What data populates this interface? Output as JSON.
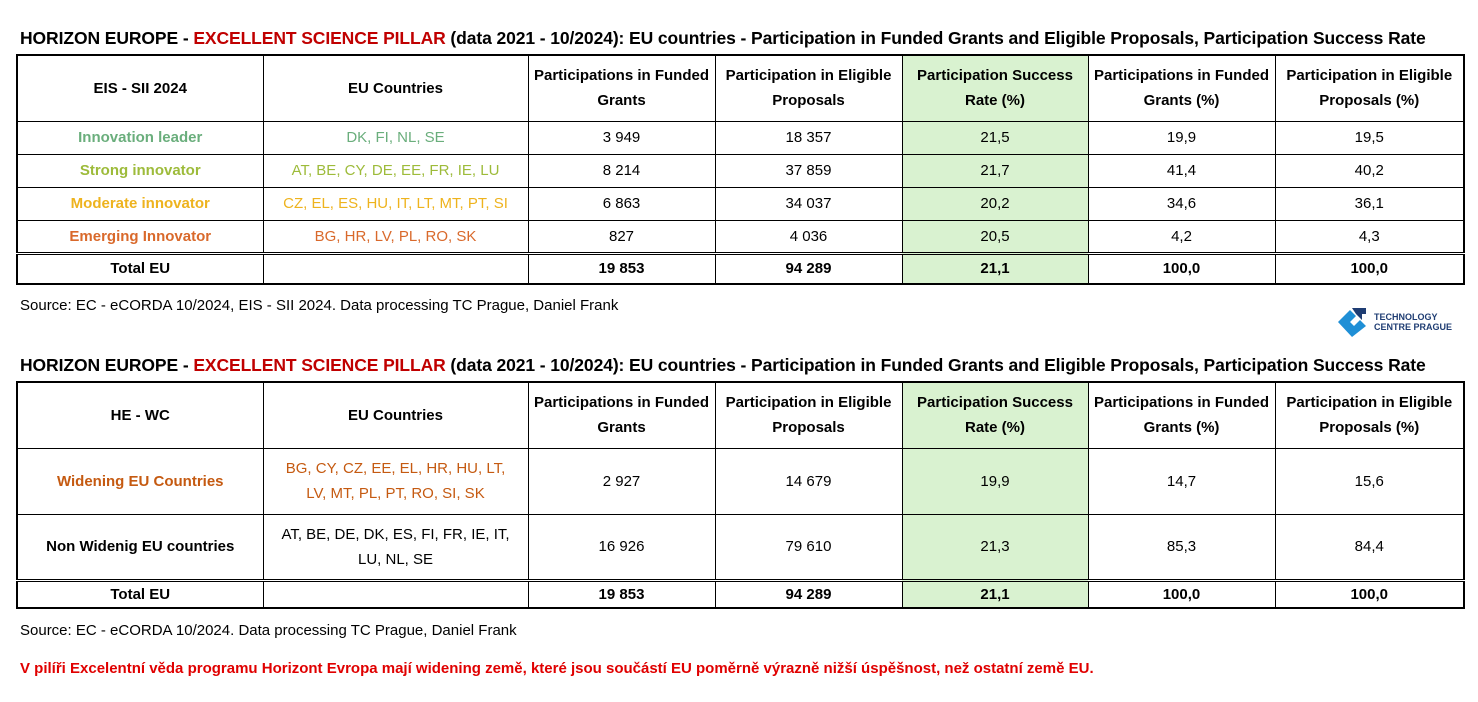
{
  "table1": {
    "title": {
      "a": "HORIZON EUROPE - ",
      "b": "EXCELLENT SCIENCE PILLAR",
      "c": " (data 2021 - 10/2024):  EU countries - Participation in Funded Grants and Eligible Proposals, Participation Success Rate"
    },
    "headers": [
      "EIS - SII 2024",
      "EU Countries",
      "Participations in Funded Grants",
      "Participation in Eligible Proposals",
      "Participation Success Rate (%)",
      "Participations in Funded Grants (%)",
      "Participation in Eligible Proposals (%)"
    ],
    "rows": [
      {
        "group": "Innovation leader",
        "countries": "DK, FI, NL, SE",
        "funded": "3 949",
        "eligible": "18 357",
        "rate": "21,5",
        "funded_pct": "19,9",
        "eligible_pct": "19,5",
        "color": "#6aae7c"
      },
      {
        "group": "Strong innovator",
        "countries": "AT, BE, CY, DE, EE, FR, IE, LU",
        "funded": "8 214",
        "eligible": "37 859",
        "rate": "21,7",
        "funded_pct": "41,4",
        "eligible_pct": "40,2",
        "color": "#9dbb3a"
      },
      {
        "group": "Moderate innovator",
        "countries": "CZ, EL, ES, HU, IT, LT, MT, PT, SI",
        "funded": "6 863",
        "eligible": "34 037",
        "rate": "20,2",
        "funded_pct": "34,6",
        "eligible_pct": "36,1",
        "color": "#eeb31e"
      },
      {
        "group": "Emerging Innovator",
        "countries": "BG, HR, LV, PL, RO, SK",
        "funded": "827",
        "eligible": "4 036",
        "rate": "20,5",
        "funded_pct": "4,2",
        "eligible_pct": "4,3",
        "color": "#d9692b"
      }
    ],
    "total": {
      "label": "Total EU",
      "funded": "19 853",
      "eligible": "94 289",
      "rate": "21,1",
      "funded_pct": "100,0",
      "eligible_pct": "100,0"
    },
    "source": "Source: EC - eCORDA 10/2024, EIS - SII 2024. Data processing TC Prague, Daniel Frank"
  },
  "logo": {
    "line1": "TECHNOLOGY",
    "line2": "CENTRE PRAGUE"
  },
  "table2": {
    "title": {
      "a": "HORIZON EUROPE - ",
      "b": "EXCELLENT SCIENCE PILLAR",
      "c": " (data 2021 - 10/2024):  EU countries - Participation in Funded Grants and Eligible Proposals, Participation Success Rate"
    },
    "headers": [
      "HE - WC",
      "EU Countries",
      "Participations in Funded Grants",
      "Participation in Eligible Proposals",
      "Participation Success Rate (%)",
      "Participations in Funded Grants (%)",
      "Participation in Eligible Proposals (%)"
    ],
    "rows": [
      {
        "group": "Widening EU Countries",
        "countries": "BG, CY, CZ, EE, EL, HR, HU, LT, LV, MT, PL, PT, RO, SI, SK",
        "funded": "2 927",
        "eligible": "14 679",
        "rate": "19,9",
        "funded_pct": "14,7",
        "eligible_pct": "15,6",
        "color": "#c55a11"
      },
      {
        "group": "Non Widenig EU countries",
        "countries": "AT, BE, DE, DK, ES, FI, FR, IE, IT, LU, NL, SE",
        "funded": "16 926",
        "eligible": "79 610",
        "rate": "21,3",
        "funded_pct": "85,3",
        "eligible_pct": "84,4",
        "color": "#000000"
      }
    ],
    "total": {
      "label": "Total EU",
      "funded": "19 853",
      "eligible": "94 289",
      "rate": "21,1",
      "funded_pct": "100,0",
      "eligible_pct": "100,0"
    },
    "source": "Source: EC - eCORDA 10/2024. Data processing TC Prague, Daniel Frank"
  },
  "note": "V pilíři Excelentní věda programu Horizont Evropa mají widening země, které jsou součástí EU poměrně výrazně nižší úspěšnost, než ostatní země EU."
}
